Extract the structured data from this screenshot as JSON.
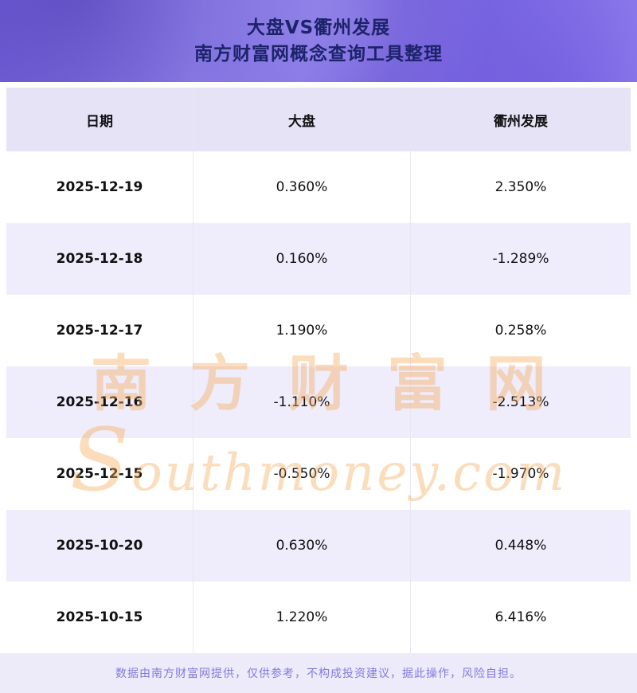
{
  "header": {
    "title": "大盘VS衢州发展",
    "subtitle": "南方财富网概念查询工具整理"
  },
  "table": {
    "columns": [
      "日期",
      "大盘",
      "衢州发展"
    ],
    "rows": [
      {
        "date": "2025-12-19",
        "market": "0.360%",
        "concept": "2.350%"
      },
      {
        "date": "2025-12-18",
        "market": "0.160%",
        "concept": "-1.289%"
      },
      {
        "date": "2025-12-17",
        "market": "1.190%",
        "concept": "0.258%"
      },
      {
        "date": "2025-12-16",
        "market": "-1.110%",
        "concept": "-2.513%"
      },
      {
        "date": "2025-12-15",
        "market": "-0.550%",
        "concept": "-1.970%"
      },
      {
        "date": "2025-10-20",
        "market": "0.630%",
        "concept": "0.448%"
      },
      {
        "date": "2025-10-15",
        "market": "1.220%",
        "concept": "6.416%"
      }
    ]
  },
  "watermark": {
    "cn": "南方财富网",
    "en": "Southmoney.com"
  },
  "footer": {
    "disclaimer": "数据由南方财富网提供，仅供参考，不构成投资建议，据此操作，风险自担。"
  },
  "colors": {
    "banner_purple_from": "#7a66e2",
    "banner_purple_to": "#9b8af4",
    "title_navy": "#1c2369",
    "header_row_bg": "#e7e3f7",
    "alt_row_bg": "#efecfb",
    "watermark_orange": "#f6ac5c",
    "footer_bg": "#edebfa",
    "footer_text": "#827be2"
  }
}
